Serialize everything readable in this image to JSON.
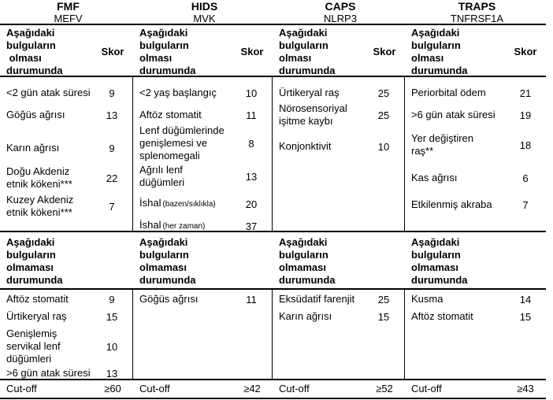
{
  "page": {
    "background": "#ffffff",
    "text_color": "#000000"
  },
  "table": {
    "groups": [
      {
        "disease": "FMF",
        "gene": "MEFV",
        "present_header": "Aşağıdaki\nbulguların\n olması\ndurumunda",
        "skor_label": "Skor",
        "present_rows": [
          {
            "label": "<2 gün atak süresi",
            "score": "9"
          },
          {
            "label": "Göğüs ağrısı",
            "score": "13"
          },
          {
            "label": "Karın ağrısı",
            "score": "9"
          },
          {
            "label": "Doğu Akdeniz\netnik kökeni***",
            "score": "22"
          },
          {
            "label": "Kuzey Akdeniz\netnik kökeni***",
            "score": "7"
          }
        ],
        "absent_header": "Aşağıdaki\nbulguların\nolmaması\ndurumunda",
        "absent_rows": [
          {
            "label": "Aftöz stomatit",
            "score": "9"
          },
          {
            "label": "Ürtikeryal raş",
            "score": "15"
          },
          {
            "label": "Genişlemiş\nservikal lenf\ndüğümleri",
            "score": "10"
          },
          {
            "label": ">6 gün atak süresi",
            "score": "13"
          }
        ],
        "cutoff_label": "Cut-off",
        "cutoff_value": "≥60"
      },
      {
        "disease": "HIDS",
        "gene": "MVK",
        "present_header": "Aşağıdaki\nbulguların\nolması\ndurumunda",
        "skor_label": "Skor",
        "present_rows": [
          {
            "label": "<2 yaş başlangıç",
            "score": "10"
          },
          {
            "label": "Aftöz stomatit",
            "score": "11"
          },
          {
            "label": "Lenf düğümlerinde\ngenişlemesi ve\nsplenomegali",
            "score": "8"
          },
          {
            "label": "Ağrılı lenf\ndüğümleri",
            "score": "13"
          },
          {
            "label": "İshal",
            "note": "(bazen/sıklıkla)",
            "score": "20"
          },
          {
            "label": "İshal",
            "note": "(her zaman)",
            "score": "37"
          }
        ],
        "absent_header": "Aşağıdaki\nbulguların\nolmaması\ndurumunda",
        "absent_rows": [
          {
            "label": "Göğüs ağrısı",
            "score": "11"
          }
        ],
        "cutoff_label": "Cut-off",
        "cutoff_value": "≥42"
      },
      {
        "disease": "CAPS",
        "gene": "NLRP3",
        "present_header": "Aşağıdaki\nbulguların\nolması\ndurumunda",
        "skor_label": "Skor",
        "present_rows": [
          {
            "label": "Ürtikeryal raş",
            "score": "25"
          },
          {
            "label": "Nörosensoriyal\nişitme kaybı",
            "score": "25"
          },
          {
            "label": "Konjonktivit",
            "score": "10"
          }
        ],
        "absent_header": "Aşağıdaki\nbulguların\nolmaması\ndurumunda",
        "absent_rows": [
          {
            "label": "Eksüdatif farenjit",
            "score": "25"
          },
          {
            "label": "Karın ağrısı",
            "score": "15"
          }
        ],
        "cutoff_label": "Cut-off",
        "cutoff_value": "≥52"
      },
      {
        "disease": "TRAPS",
        "gene": "TNFRSF1A",
        "present_header": "Aşağıdaki\nbulguların\nolması\ndurumunda",
        "skor_label": "Skor",
        "present_rows": [
          {
            "label": "Periorbital ödem",
            "score": "21"
          },
          {
            "label": ">6 gün atak süresi",
            "score": "19"
          },
          {
            "label": "Yer değiştiren\nraş**",
            "score": "18"
          },
          {
            "label": "Kas ağrısı",
            "score": "6"
          },
          {
            "label": "Etkilenmiş akraba",
            "score": "7"
          }
        ],
        "absent_header": "Aşağıdaki\nbulguların\nolmaması\ndurumunda",
        "absent_rows": [
          {
            "label": "Kusma",
            "score": "14"
          },
          {
            "label": "Aftöz stomatit",
            "score": "15"
          }
        ],
        "cutoff_label": "Cut-off",
        "cutoff_value": "≥43"
      }
    ]
  }
}
